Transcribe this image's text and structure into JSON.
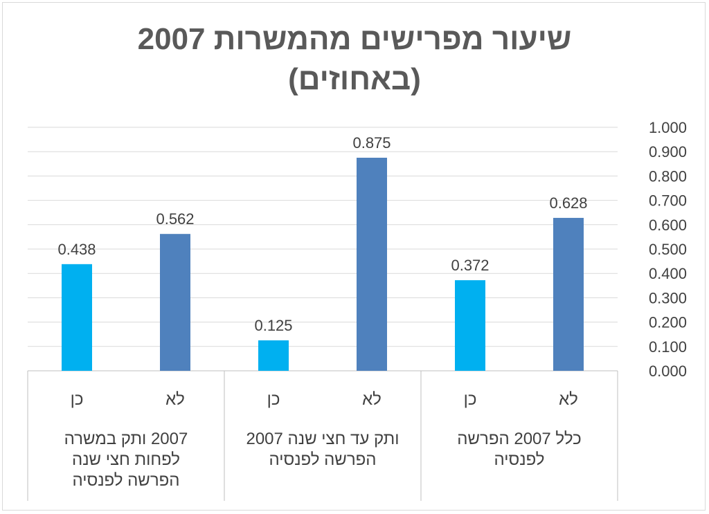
{
  "chart_data": {
    "type": "bar",
    "title_lines": [
      "שיעור מפרישים מהמשרות 2007",
      "(באחוזים)"
    ],
    "ylim": [
      0,
      1
    ],
    "ytick_step": 0.1,
    "ytick_decimals": 3,
    "y_axis_side": "right",
    "grid": true,
    "legend": "none",
    "colors": {
      "כן": "#00b0f0",
      "לא": "#4f81bd"
    },
    "groups": [
      {
        "label_lines": [
          "2007 ותק במשרה",
          "לפחות חצי שנה",
          "הפרשה לפנסיה"
        ],
        "bars": [
          {
            "label": "כן",
            "value": 0.438,
            "value_label": "0.438"
          },
          {
            "label": "לא",
            "value": 0.562,
            "value_label": "0.562"
          }
        ]
      },
      {
        "label_lines": [
          "ותק עד חצי שנה 2007",
          "הפרשה לפנסיה"
        ],
        "bars": [
          {
            "label": "כן",
            "value": 0.125,
            "value_label": "0.125"
          },
          {
            "label": "לא",
            "value": 0.875,
            "value_label": "0.875"
          }
        ]
      },
      {
        "label_lines": [
          "כלל 2007 הפרשה",
          "לפנסיה"
        ],
        "bars": [
          {
            "label": "כן",
            "value": 0.372,
            "value_label": "0.372"
          },
          {
            "label": "לא",
            "value": 0.628,
            "value_label": "0.628"
          }
        ]
      }
    ]
  }
}
